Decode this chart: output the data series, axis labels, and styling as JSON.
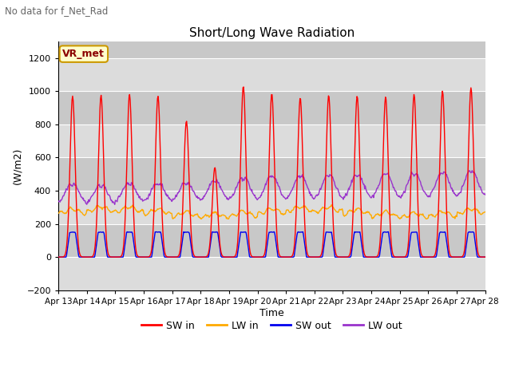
{
  "title": "Short/Long Wave Radiation",
  "suptitle": "No data for f_Net_Rad",
  "xlabel": "Time",
  "ylabel": "(W/m2)",
  "legend_label": "VR_met",
  "series_labels": [
    "SW in",
    "LW in",
    "SW out",
    "LW out"
  ],
  "series_colors": [
    "#ff0000",
    "#ffaa00",
    "#0000ee",
    "#9933cc"
  ],
  "ylim": [
    -200,
    1300
  ],
  "yticks": [
    -200,
    0,
    200,
    400,
    600,
    800,
    1000,
    1200
  ],
  "xtick_labels": [
    "Apr 13",
    "Apr 14",
    "Apr 15",
    "Apr 16",
    "Apr 17",
    "Apr 18",
    "Apr 19",
    "Apr 20",
    "Apr 21",
    "Apr 22",
    "Apr 23",
    "Apr 24",
    "Apr 25",
    "Apr 26",
    "Apr 27",
    "Apr 28"
  ],
  "n_days": 15,
  "plot_bg_light": "#dcdcdc",
  "plot_bg_dark": "#c8c8c8",
  "grid_color": "#ffffff",
  "line_width": 1.0,
  "legend_box_color": "#ffffcc",
  "legend_box_edge": "#cc9900",
  "fig_bg": "#f0f0f0"
}
